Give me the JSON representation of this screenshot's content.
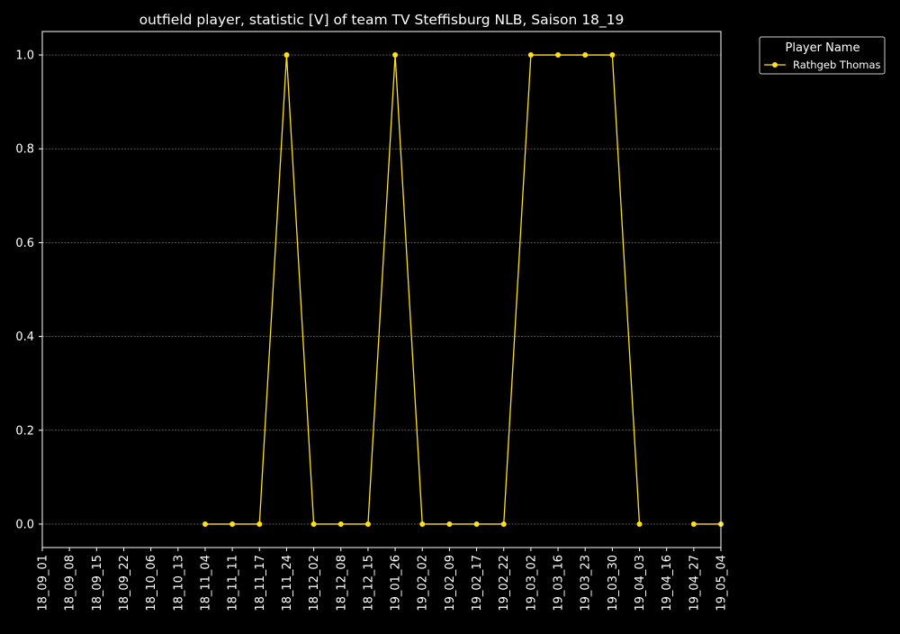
{
  "chart_data": {
    "type": "line",
    "title": "outfield player, statistic [V] of team TV Steffisburg NLB, Saison 18_19",
    "xlabel": "",
    "ylabel": "",
    "categories": [
      "18_09_01",
      "18_09_08",
      "18_09_15",
      "18_09_22",
      "18_10_06",
      "18_10_13",
      "18_11_04",
      "18_11_11",
      "18_11_17",
      "18_11_24",
      "18_12_02",
      "18_12_08",
      "18_12_15",
      "19_01_26",
      "19_02_02",
      "19_02_09",
      "19_02_17",
      "19_02_22",
      "19_03_02",
      "19_03_16",
      "19_03_23",
      "19_03_30",
      "19_04_03",
      "19_04_16",
      "19_04_27",
      "19_05_04"
    ],
    "ylim": [
      -0.05,
      1.05
    ],
    "yticks": [
      "0.0",
      "0.2",
      "0.4",
      "0.6",
      "0.8",
      "1.0"
    ],
    "ytick_values": [
      0,
      0.2,
      0.4,
      0.6,
      0.8,
      1.0
    ],
    "grid": true,
    "legend": {
      "title": "Player Name",
      "placement": "upper-right-outside"
    },
    "series": [
      {
        "name": "Rathgeb Thomas",
        "color": "#ffe01a",
        "values": [
          null,
          null,
          null,
          null,
          null,
          null,
          0,
          0,
          0,
          1,
          0,
          0,
          0,
          1,
          0,
          0,
          0,
          0,
          1,
          1,
          1,
          1,
          0,
          null,
          0,
          0
        ]
      }
    ]
  },
  "colors": {
    "background": "#000000",
    "foreground": "#ffffff",
    "grid": "#888888"
  }
}
